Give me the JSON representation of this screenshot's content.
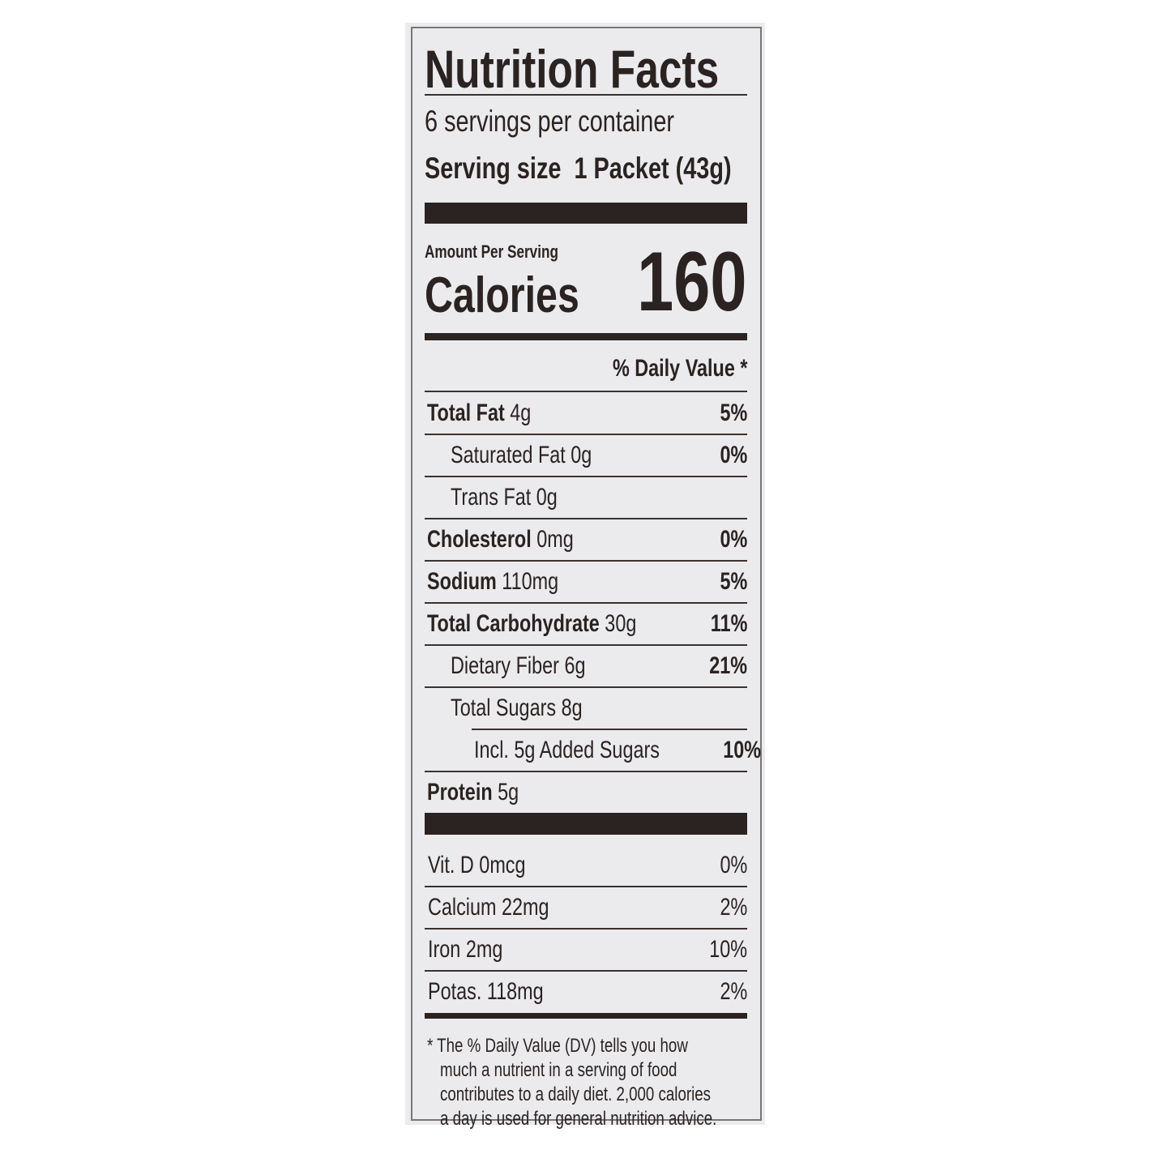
{
  "title": "Nutrition Facts",
  "servings_per_container": "6 servings per container",
  "serving_size_label": "Serving size",
  "serving_size_value": "1 Packet (43g)",
  "amount_per_serving": "Amount Per Serving",
  "calories_label": "Calories",
  "calories_value": "160",
  "daily_value_header": "% Daily Value *",
  "nutrients": [
    {
      "name": "Total Fat",
      "amount": "4g",
      "dv": "5%",
      "indent": 0,
      "bold": true
    },
    {
      "name": "Saturated Fat",
      "amount": "0g",
      "dv": "0%",
      "indent": 1,
      "bold": false
    },
    {
      "name": "Trans Fat",
      "amount": "0g",
      "dv": "",
      "indent": 1,
      "bold": false
    },
    {
      "name": "Cholesterol",
      "amount": "0mg",
      "dv": "0%",
      "indent": 0,
      "bold": true
    },
    {
      "name": "Sodium",
      "amount": "110mg",
      "dv": "5%",
      "indent": 0,
      "bold": true
    },
    {
      "name": "Total Carbohydrate",
      "amount": "30g",
      "dv": "11%",
      "indent": 0,
      "bold": true
    },
    {
      "name": "Dietary Fiber",
      "amount": "6g",
      "dv": "21%",
      "indent": 1,
      "bold": false
    },
    {
      "name": "Total Sugars",
      "amount": "8g",
      "dv": "",
      "indent": 1,
      "bold": false
    },
    {
      "name": "Incl. 5g Added Sugars",
      "amount": "",
      "dv": "10%",
      "indent": 2,
      "bold": false
    },
    {
      "name": "Protein",
      "amount": "5g",
      "dv": "",
      "indent": 0,
      "bold": true
    }
  ],
  "vitamins": [
    {
      "name": "Vit. D",
      "amount": "0mcg",
      "dv": "0%"
    },
    {
      "name": "Calcium",
      "amount": "22mg",
      "dv": "2%"
    },
    {
      "name": "Iron",
      "amount": "2mg",
      "dv": "10%"
    },
    {
      "name": "Potas.",
      "amount": "118mg",
      "dv": "2%"
    }
  ],
  "footnote": [
    "* The % Daily Value (DV) tells you how",
    "much a nutrient in a serving of food",
    "contributes to a daily diet. 2,000 calories",
    "a day is used for general nutrition advice."
  ]
}
